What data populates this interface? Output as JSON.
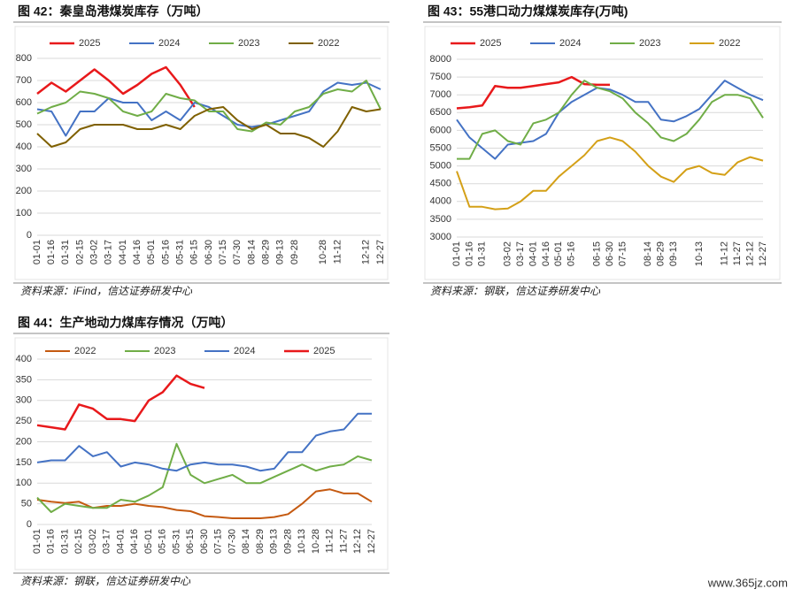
{
  "chart_data": [
    {
      "type": "line",
      "title": "图 42：秦皇岛港煤炭库存（万吨）",
      "source": "资料来源：iFind，信达证券研发中心",
      "categories": [
        "01-01",
        "01-16",
        "01-31",
        "02-15",
        "03-02",
        "03-17",
        "04-01",
        "04-16",
        "05-01",
        "05-16",
        "05-31",
        "06-15",
        "06-30",
        "07-15",
        "07-30",
        "08-14",
        "08-29",
        "09-13",
        "09-28",
        null,
        "10-28",
        "11-12",
        null,
        "12-12",
        "12-27"
      ],
      "ylim": [
        0,
        800
      ],
      "yticks": [
        0,
        100,
        200,
        300,
        400,
        500,
        600,
        700,
        800
      ],
      "grid": true,
      "series": [
        {
          "name": "2025",
          "color": "#e8191b",
          "width": 2.5,
          "values": [
            640,
            690,
            650,
            700,
            750,
            700,
            640,
            680,
            730,
            760,
            680,
            580,
            null,
            null,
            null,
            null,
            null,
            null,
            null,
            null,
            null,
            null,
            null,
            null,
            null
          ]
        },
        {
          "name": "2024",
          "color": "#4472c4",
          "width": 2,
          "values": [
            570,
            560,
            450,
            560,
            560,
            620,
            600,
            600,
            520,
            560,
            520,
            600,
            580,
            540,
            500,
            490,
            500,
            520,
            540,
            560,
            650,
            690,
            680,
            690,
            660
          ]
        },
        {
          "name": "2023",
          "color": "#70ad47",
          "width": 2,
          "values": [
            550,
            580,
            600,
            650,
            640,
            620,
            560,
            540,
            560,
            640,
            620,
            610,
            560,
            560,
            480,
            470,
            510,
            500,
            560,
            580,
            640,
            660,
            650,
            700,
            570
          ]
        },
        {
          "name": "2022",
          "color": "#7f6000",
          "width": 2,
          "values": [
            460,
            400,
            420,
            480,
            500,
            500,
            500,
            480,
            480,
            500,
            480,
            540,
            570,
            580,
            520,
            480,
            500,
            460,
            460,
            440,
            400,
            470,
            580,
            560,
            570
          ]
        }
      ]
    },
    {
      "type": "line",
      "title": "图 43：55港口动力煤煤炭库存(万吨)",
      "source": "资料来源：钢联，信达证券研发中心",
      "categories": [
        "01-01",
        "01-16",
        "01-31",
        null,
        "03-02",
        "03-17",
        "04-01",
        "04-16",
        "05-01",
        "05-16",
        null,
        "06-15",
        "06-30",
        "07-15",
        null,
        "08-14",
        "08-29",
        "09-13",
        null,
        "10-13",
        null,
        "11-12",
        "11-27",
        "12-12",
        "12-27"
      ],
      "ylim": [
        3000,
        8000
      ],
      "yticks": [
        3000,
        3500,
        4000,
        4500,
        5000,
        5500,
        6000,
        6500,
        7000,
        7500,
        8000
      ],
      "grid": true,
      "series": [
        {
          "name": "2025",
          "color": "#e8191b",
          "width": 2.5,
          "values": [
            6620,
            6650,
            6700,
            7250,
            7200,
            7200,
            7250,
            7300,
            7350,
            7500,
            7300,
            7280,
            7280,
            null,
            null,
            null,
            null,
            null,
            null,
            null,
            null,
            null,
            null,
            null,
            null
          ]
        },
        {
          "name": "2024",
          "color": "#4472c4",
          "width": 2,
          "values": [
            6300,
            5800,
            5500,
            5200,
            5600,
            5650,
            5700,
            5900,
            6500,
            6800,
            7000,
            7200,
            7150,
            7000,
            6800,
            6800,
            6300,
            6250,
            6400,
            6600,
            7000,
            7400,
            7200,
            7000,
            6850
          ]
        },
        {
          "name": "2023",
          "color": "#70ad47",
          "width": 2,
          "values": [
            5200,
            5200,
            5900,
            6000,
            5700,
            5600,
            6200,
            6300,
            6500,
            7000,
            7400,
            7200,
            7100,
            6900,
            6500,
            6200,
            5800,
            5700,
            5900,
            6300,
            6800,
            7000,
            7000,
            6900,
            6350
          ]
        },
        {
          "name": "2022",
          "color": "#d4a017",
          "width": 2,
          "values": [
            4850,
            3850,
            3850,
            3780,
            3800,
            4000,
            4300,
            4300,
            4700,
            5000,
            5300,
            5700,
            5800,
            5700,
            5400,
            5000,
            4700,
            4550,
            4900,
            5000,
            4800,
            4750,
            5100,
            5250,
            5150
          ]
        }
      ]
    },
    {
      "type": "line",
      "title": "图 44：生产地动力煤库存情况（万吨）",
      "source": "资料来源：钢联，信达证券研发中心",
      "categories": [
        "01-01",
        "01-16",
        "01-31",
        "02-15",
        "03-02",
        "03-17",
        "04-01",
        "04-16",
        "05-01",
        "05-16",
        "05-31",
        "06-15",
        "06-30",
        "07-15",
        "07-30",
        "08-14",
        "08-29",
        "09-13",
        "09-28",
        "10-13",
        "10-28",
        "11-12",
        "11-27",
        "12-12",
        "12-27"
      ],
      "ylim": [
        0,
        400
      ],
      "yticks": [
        0,
        50,
        100,
        150,
        200,
        250,
        300,
        350,
        400
      ],
      "grid": true,
      "series": [
        {
          "name": "2022",
          "color": "#c55a11",
          "width": 2,
          "values": [
            60,
            55,
            52,
            55,
            40,
            45,
            45,
            50,
            45,
            42,
            35,
            32,
            20,
            18,
            15,
            15,
            15,
            18,
            25,
            50,
            80,
            85,
            75,
            75,
            55
          ]
        },
        {
          "name": "2023",
          "color": "#70ad47",
          "width": 2,
          "values": [
            65,
            30,
            50,
            45,
            40,
            40,
            60,
            55,
            70,
            90,
            195,
            120,
            100,
            110,
            120,
            100,
            100,
            115,
            130,
            145,
            130,
            140,
            145,
            165,
            155
          ]
        },
        {
          "name": "2024",
          "color": "#4472c4",
          "width": 2,
          "values": [
            150,
            155,
            155,
            190,
            165,
            175,
            140,
            150,
            145,
            135,
            130,
            145,
            150,
            145,
            145,
            140,
            130,
            135,
            175,
            175,
            215,
            225,
            230,
            268,
            268
          ]
        },
        {
          "name": "2025",
          "color": "#e8191b",
          "width": 2.5,
          "values": [
            240,
            235,
            230,
            290,
            280,
            255,
            255,
            250,
            300,
            320,
            360,
            340,
            330,
            null,
            null,
            null,
            null,
            null,
            null,
            null,
            null,
            null,
            null,
            null,
            null
          ]
        }
      ]
    }
  ],
  "watermark": "www.365jz.com"
}
